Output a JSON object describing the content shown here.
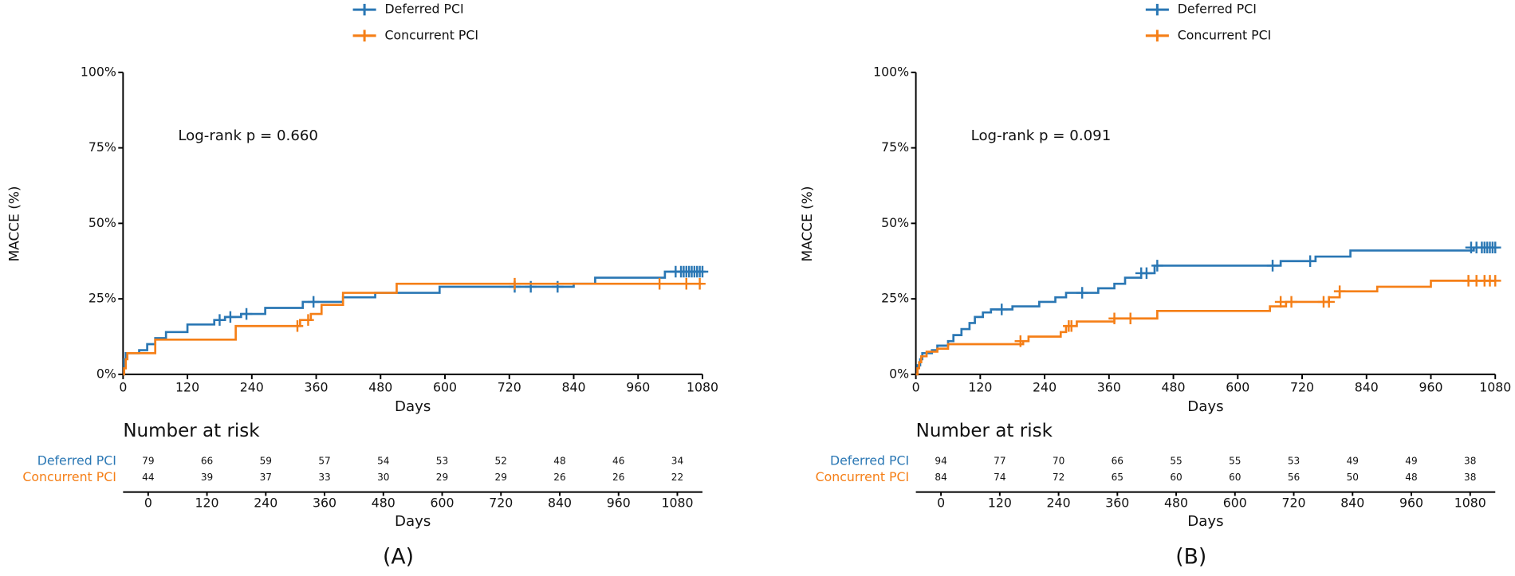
{
  "chart_data": [
    {
      "type": "line",
      "step": true,
      "panel_label": "(A)",
      "annotation": "Log-rank p = 0.660",
      "xlabel": "Days",
      "ylabel": "MACCE (%)",
      "xlim": [
        0,
        1080
      ],
      "xticks": [
        0,
        120,
        240,
        360,
        480,
        600,
        720,
        840,
        960,
        1080
      ],
      "ylim": [
        0,
        100
      ],
      "yticks": [
        {
          "value": 0,
          "label": "0%"
        },
        {
          "value": 25,
          "label": "25%"
        },
        {
          "value": 50,
          "label": "50%"
        },
        {
          "value": 75,
          "label": "75%"
        },
        {
          "value": 100,
          "label": "100%"
        }
      ],
      "risk_title": "Number at risk",
      "series": [
        {
          "name": "Deferred PCI",
          "color": "#2a77b4",
          "x": [
            0,
            2,
            5,
            30,
            45,
            60,
            80,
            120,
            170,
            190,
            220,
            265,
            335,
            410,
            470,
            590,
            840,
            880,
            1010,
            1080
          ],
          "values": [
            0,
            5,
            7,
            8,
            10,
            12,
            14,
            16.5,
            18,
            19,
            20,
            22,
            24,
            25.5,
            27,
            29,
            30,
            32,
            34,
            34
          ],
          "censor_x": [
            180,
            200,
            230,
            355,
            730,
            760,
            810,
            1030,
            1040,
            1045,
            1050,
            1055,
            1060,
            1065,
            1070,
            1075,
            1080
          ],
          "censor_values": [
            18,
            19,
            20,
            24,
            29,
            29,
            29,
            34,
            34,
            34,
            34,
            34,
            34,
            34,
            34,
            34,
            34
          ],
          "at_risk": [
            79,
            66,
            59,
            57,
            54,
            53,
            52,
            48,
            46,
            34
          ]
        },
        {
          "name": "Concurrent PCI",
          "color": "#f57f17",
          "x": [
            0,
            2,
            5,
            8,
            60,
            210,
            330,
            350,
            370,
            410,
            510,
            1080
          ],
          "values": [
            0,
            2,
            5,
            7,
            11.5,
            16,
            18,
            20,
            23,
            27,
            30,
            30
          ],
          "censor_x": [
            325,
            345,
            730,
            1000,
            1050,
            1075
          ],
          "censor_values": [
            16,
            18,
            30,
            30,
            30,
            30
          ],
          "at_risk": [
            44,
            39,
            37,
            33,
            30,
            29,
            29,
            26,
            26,
            22
          ]
        }
      ]
    },
    {
      "type": "line",
      "step": true,
      "panel_label": "(B)",
      "annotation": "Log-rank p = 0.091",
      "xlabel": "Days",
      "ylabel": "MACCE (%)",
      "xlim": [
        0,
        1080
      ],
      "xticks": [
        0,
        120,
        240,
        360,
        480,
        600,
        720,
        840,
        960,
        1080
      ],
      "ylim": [
        0,
        100
      ],
      "yticks": [
        {
          "value": 0,
          "label": "0%"
        },
        {
          "value": 25,
          "label": "25%"
        },
        {
          "value": 50,
          "label": "50%"
        },
        {
          "value": 75,
          "label": "75%"
        },
        {
          "value": 100,
          "label": "100%"
        }
      ],
      "risk_title": "Number at risk",
      "series": [
        {
          "name": "Deferred PCI",
          "color": "#2a77b4",
          "x": [
            0,
            3,
            8,
            12,
            30,
            40,
            60,
            70,
            85,
            100,
            110,
            125,
            140,
            180,
            230,
            260,
            280,
            340,
            370,
            390,
            420,
            445,
            680,
            745,
            810,
            1040,
            1080
          ],
          "values": [
            0,
            3,
            5,
            7,
            8,
            9.5,
            11,
            13,
            15,
            17,
            19,
            20.5,
            21.5,
            22.5,
            24,
            25.5,
            27,
            28.5,
            30,
            32,
            33.5,
            36,
            37.5,
            39,
            41,
            42,
            42
          ],
          "censor_x": [
            160,
            310,
            420,
            430,
            450,
            665,
            735,
            1035,
            1045,
            1055,
            1060,
            1065,
            1070,
            1075,
            1080
          ],
          "censor_values": [
            21.5,
            27,
            33.5,
            33.5,
            36,
            36,
            37.5,
            42,
            42,
            42,
            42,
            42,
            42,
            42,
            42
          ],
          "at_risk": [
            94,
            77,
            70,
            66,
            55,
            55,
            53,
            49,
            49,
            38
          ]
        },
        {
          "name": "Concurrent PCI",
          "color": "#f57f17",
          "x": [
            0,
            3,
            6,
            10,
            20,
            40,
            60,
            200,
            210,
            270,
            280,
            300,
            370,
            450,
            660,
            690,
            770,
            790,
            860,
            960,
            1080
          ],
          "values": [
            0,
            2,
            4,
            6,
            7.5,
            8.5,
            10,
            11,
            12.5,
            14,
            16,
            17.5,
            18.5,
            21,
            22.5,
            24,
            25.5,
            27.5,
            29,
            31,
            31
          ],
          "censor_x": [
            195,
            285,
            290,
            370,
            400,
            680,
            700,
            760,
            770,
            790,
            1030,
            1045,
            1060,
            1070,
            1080
          ],
          "censor_values": [
            11,
            16,
            16,
            18.5,
            18.5,
            24,
            24,
            24,
            24,
            27.5,
            31,
            31,
            31,
            31,
            31
          ],
          "at_risk": [
            84,
            74,
            72,
            65,
            60,
            60,
            56,
            50,
            48,
            38
          ]
        }
      ]
    }
  ]
}
